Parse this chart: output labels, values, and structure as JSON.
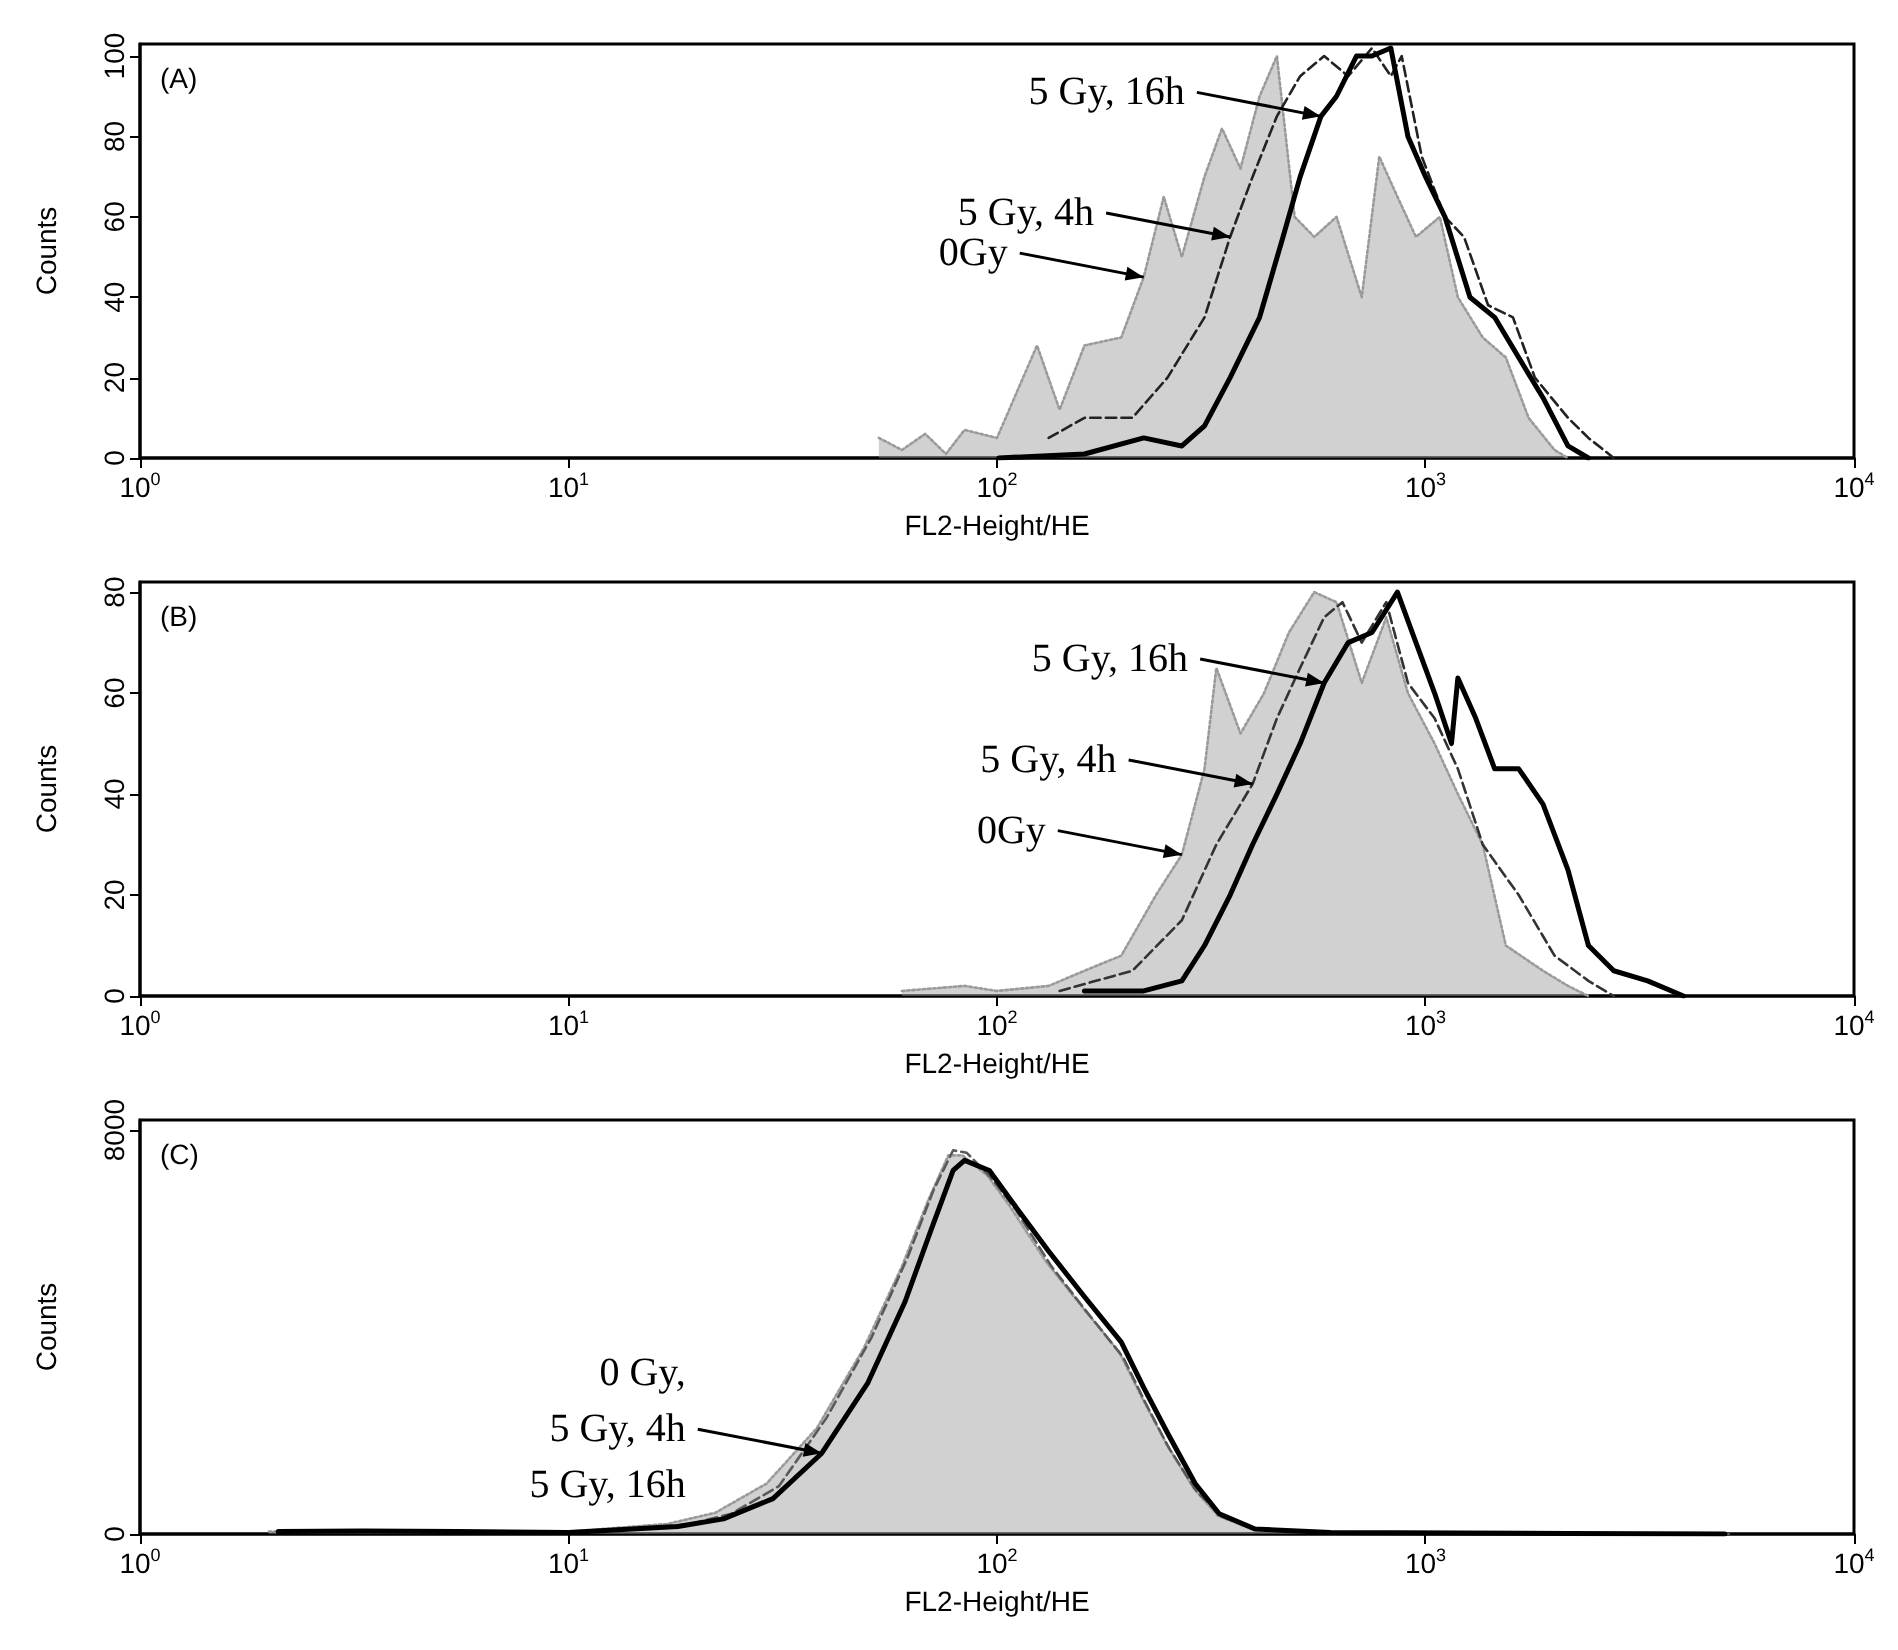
{
  "chart_data": [
    {
      "type": "line",
      "xlabel": "FL2-Height/HE",
      "ylabel": "Counts",
      "log": "x",
      "grid": false,
      "marker": "none",
      "xlim": [
        1,
        10000
      ],
      "xticks": [
        {
          "value": 1,
          "label": "10$^{0}$"
        },
        {
          "value": 10,
          "label": "10$^{1}$"
        },
        {
          "value": 100,
          "label": "10$^{2}$"
        },
        {
          "value": 1000,
          "label": "10$^{3}$"
        },
        {
          "value": 10000,
          "label": "10$^{4}$"
        }
      ],
      "ylim": [
        0,
        103
      ],
      "yticks": [
        0,
        20,
        40,
        60,
        80,
        100
      ],
      "annotations": [
        "(A)",
        {
          "text": "5 Gy, 16h",
          "x": 570,
          "y": 85
        },
        {
          "text": "5 Gy, 4h",
          "x": 350,
          "y": 55
        },
        {
          "text": "0Gy",
          "x": 220,
          "y": 45
        }
      ],
      "series": [
        {
          "type": "area",
          "color": "#9a9a9a",
          "line_style": "dotted",
          "x": [
            53,
            60,
            68,
            76,
            84,
            100,
            124,
            140,
            160,
            195,
            220,
            245,
            270,
            305,
            335,
            370,
            410,
            450,
            495,
            550,
            620,
            710,
            780,
            860,
            950,
            1080,
            1190,
            1360,
            1540,
            1740,
            2000,
            2150
          ],
          "values": [
            5,
            2,
            6,
            1,
            7,
            5,
            28,
            12,
            28,
            30,
            45,
            65,
            50,
            70,
            82,
            72,
            90,
            100,
            60,
            55,
            60,
            40,
            75,
            65,
            55,
            60,
            40,
            30,
            25,
            10,
            2,
            0
          ]
        },
        {
          "color": "#222222",
          "line_style": "dashed",
          "x": [
            132,
            160,
            207,
            250,
            305,
            350,
            395,
            450,
            510,
            580,
            660,
            750,
            830,
            880,
            980,
            1110,
            1230,
            1400,
            1600,
            1800,
            2150,
            2400,
            2750
          ],
          "values": [
            5,
            10,
            10,
            20,
            35,
            55,
            70,
            85,
            95,
            100,
            95,
            102,
            95,
            100,
            75,
            60,
            55,
            38,
            35,
            20,
            10,
            5,
            0
          ]
        },
        {
          "color": "#000000",
          "line_style": "solid",
          "x": [
            101,
            160,
            220,
            270,
            305,
            350,
            410,
            465,
            510,
            570,
            620,
            690,
            750,
            830,
            910,
            1000,
            1110,
            1270,
            1450,
            1650,
            1880,
            2150,
            2400
          ],
          "values": [
            0,
            1,
            5,
            3,
            8,
            20,
            35,
            55,
            70,
            85,
            90,
            100,
            100,
            102,
            80,
            70,
            60,
            40,
            35,
            25,
            15,
            3,
            0
          ]
        }
      ]
    },
    {
      "type": "line",
      "xlabel": "FL2-Height/HE",
      "ylabel": "Counts",
      "log": "x",
      "grid": false,
      "marker": "none",
      "xlim": [
        1,
        10000
      ],
      "xticks": [
        {
          "value": 1,
          "label": "10$^{0}$"
        },
        {
          "value": 10,
          "label": "10$^{1}$"
        },
        {
          "value": 100,
          "label": "10$^{2}$"
        },
        {
          "value": 1000,
          "label": "10$^{3}$"
        },
        {
          "value": 10000,
          "label": "10$^{4}$"
        }
      ],
      "ylim": [
        0,
        82
      ],
      "yticks": [
        0,
        20,
        40,
        60,
        80
      ],
      "annotations": [
        "(B)",
        {
          "text": "5 Gy, 16h",
          "x": 580,
          "y": 62
        },
        {
          "text": "5 Gy, 4h",
          "x": 395,
          "y": 42
        },
        {
          "text": "0Gy",
          "x": 270,
          "y": 28
        }
      ],
      "series": [
        {
          "type": "area",
          "color": "#9a9a9a",
          "line_style": "dotted",
          "x": [
            60,
            84,
            100,
            132,
            160,
            195,
            235,
            270,
            305,
            325,
            370,
            420,
            480,
            550,
            620,
            710,
            810,
            910,
            1050,
            1190,
            1360,
            1540,
            1880,
            2150,
            2400
          ],
          "values": [
            1,
            2,
            1,
            2,
            5,
            8,
            20,
            28,
            45,
            65,
            52,
            60,
            72,
            80,
            78,
            62,
            75,
            60,
            50,
            40,
            30,
            10,
            5,
            2,
            0
          ]
        },
        {
          "color": "#333333",
          "line_style": "dashed",
          "x": [
            140,
            207,
            270,
            325,
            395,
            450,
            510,
            580,
            640,
            710,
            810,
            910,
            1050,
            1190,
            1360,
            1650,
            2000,
            2400,
            2750
          ],
          "values": [
            1,
            5,
            15,
            30,
            42,
            55,
            65,
            75,
            78,
            70,
            78,
            62,
            55,
            45,
            30,
            20,
            8,
            3,
            0
          ]
        },
        {
          "color": "#000000",
          "line_style": "solid",
          "x": [
            160,
            220,
            270,
            305,
            350,
            395,
            450,
            510,
            580,
            660,
            750,
            860,
            950,
            1050,
            1150,
            1190,
            1310,
            1450,
            1650,
            1880,
            2150,
            2400,
            2750,
            3300,
            4000
          ],
          "values": [
            1,
            1,
            3,
            10,
            20,
            30,
            40,
            50,
            62,
            70,
            72,
            80,
            70,
            60,
            50,
            63,
            55,
            45,
            45,
            38,
            25,
            10,
            5,
            3,
            0
          ]
        }
      ]
    },
    {
      "type": "line",
      "xlabel": "FL2-Height/HE",
      "ylabel": "Counts",
      "log": "x",
      "grid": false,
      "marker": "none",
      "xlim": [
        1,
        10000
      ],
      "xticks": [
        {
          "value": 1,
          "label": "10$^{0}$"
        },
        {
          "value": 10,
          "label": "10$^{1}$"
        },
        {
          "value": 100,
          "label": "10$^{2}$"
        },
        {
          "value": 1000,
          "label": "10$^{3}$"
        },
        {
          "value": 10000,
          "label": "10$^{4}$"
        }
      ],
      "ylim": [
        0,
        8200
      ],
      "yticks": [
        0,
        8000
      ],
      "annotations": [
        "(C)",
        {
          "text": "0 Gy,\n5 Gy, 4h\n5 Gy, 16h",
          "x": 39,
          "y": 1600
        }
      ],
      "series": [
        {
          "type": "area",
          "color": "#9a9a9a",
          "line_style": "dotted",
          "x": [
            2.0,
            3.2,
            5.4,
            9.5,
            17,
            22,
            29,
            38,
            49,
            60,
            69,
            77,
            83,
            95,
            107,
            130,
            158,
            193,
            218,
            248,
            288,
            328,
            395,
            590,
            2100,
            4900
          ],
          "values": [
            50,
            60,
            50,
            30,
            200,
            420,
            1000,
            2100,
            3700,
            5300,
            6600,
            7500,
            7500,
            7100,
            6500,
            5400,
            4500,
            3600,
            2700,
            1800,
            900,
            360,
            90,
            30,
            10,
            0
          ]
        },
        {
          "color": "#5a5a5a",
          "line_style": "dashed",
          "x": [
            2.2,
            3.4,
            5.6,
            11,
            19,
            24,
            31,
            40,
            51,
            62,
            71,
            79,
            85,
            97,
            110,
            134,
            162,
            197,
            222,
            252,
            292,
            335,
            405,
            620,
            2200,
            5100
          ],
          "values": [
            50,
            60,
            50,
            30,
            190,
            400,
            950,
            2300,
            3900,
            5500,
            6800,
            7600,
            7550,
            7050,
            6450,
            5300,
            4400,
            3500,
            2600,
            1700,
            850,
            340,
            90,
            30,
            10,
            0
          ]
        },
        {
          "color": "#000000",
          "line_style": "solid",
          "x": [
            2.1,
            3.3,
            5.5,
            10,
            18,
            23,
            30,
            39,
            50,
            61,
            70,
            79,
            84,
            96,
            108,
            132,
            160,
            195,
            220,
            250,
            290,
            330,
            400,
            600,
            2150,
            5000
          ],
          "values": [
            50,
            60,
            50,
            30,
            150,
            300,
            700,
            1600,
            3000,
            4600,
            6000,
            7200,
            7400,
            7200,
            6600,
            5600,
            4700,
            3800,
            2900,
            2000,
            1000,
            400,
            100,
            30,
            10,
            0
          ]
        }
      ]
    }
  ]
}
